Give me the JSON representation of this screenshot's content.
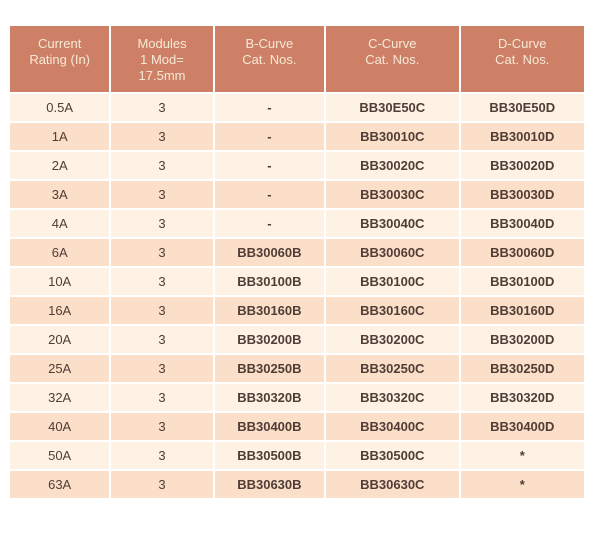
{
  "page": {
    "background": "#ffffff"
  },
  "colors": {
    "header_bg": "#cd8065",
    "header_text": "#f7e9d8",
    "row_light": "#fdf2e3",
    "row_dark": "#fbdfc8",
    "cell_text": "#503d36"
  },
  "table": {
    "columns": [
      {
        "id": "rating",
        "label_lines": [
          "Current",
          "Rating (In)"
        ]
      },
      {
        "id": "modules",
        "label_lines": [
          "Modules",
          "1 Mod=",
          "17.5mm"
        ]
      },
      {
        "id": "b_curve",
        "label_lines": [
          "B-Curve",
          "Cat. Nos."
        ]
      },
      {
        "id": "c_curve",
        "label_lines": [
          "C-Curve",
          "Cat. Nos."
        ]
      },
      {
        "id": "d_curve",
        "label_lines": [
          "D-Curve",
          "Cat. Nos."
        ]
      }
    ],
    "rows": [
      {
        "rating": "0.5A",
        "modules": "3",
        "b_curve": "-",
        "c_curve": "BB30E50C",
        "d_curve": "BB30E50D"
      },
      {
        "rating": "1A",
        "modules": "3",
        "b_curve": "-",
        "c_curve": "BB30010C",
        "d_curve": "BB30010D"
      },
      {
        "rating": "2A",
        "modules": "3",
        "b_curve": "-",
        "c_curve": "BB30020C",
        "d_curve": "BB30020D"
      },
      {
        "rating": "3A",
        "modules": "3",
        "b_curve": "-",
        "c_curve": "BB30030C",
        "d_curve": "BB30030D"
      },
      {
        "rating": "4A",
        "modules": "3",
        "b_curve": "-",
        "c_curve": "BB30040C",
        "d_curve": "BB30040D"
      },
      {
        "rating": "6A",
        "modules": "3",
        "b_curve": "BB30060B",
        "c_curve": "BB30060C",
        "d_curve": "BB30060D"
      },
      {
        "rating": "10A",
        "modules": "3",
        "b_curve": "BB30100B",
        "c_curve": "BB30100C",
        "d_curve": "BB30100D"
      },
      {
        "rating": "16A",
        "modules": "3",
        "b_curve": "BB30160B",
        "c_curve": "BB30160C",
        "d_curve": "BB30160D"
      },
      {
        "rating": "20A",
        "modules": "3",
        "b_curve": "BB30200B",
        "c_curve": "BB30200C",
        "d_curve": "BB30200D"
      },
      {
        "rating": "25A",
        "modules": "3",
        "b_curve": "BB30250B",
        "c_curve": "BB30250C",
        "d_curve": "BB30250D"
      },
      {
        "rating": "32A",
        "modules": "3",
        "b_curve": "BB30320B",
        "c_curve": "BB30320C",
        "d_curve": "BB30320D"
      },
      {
        "rating": "40A",
        "modules": "3",
        "b_curve": "BB30400B",
        "c_curve": "BB30400C",
        "d_curve": "BB30400D"
      },
      {
        "rating": "50A",
        "modules": "3",
        "b_curve": "BB30500B",
        "c_curve": "BB30500C",
        "d_curve": "*"
      },
      {
        "rating": "63A",
        "modules": "3",
        "b_curve": "BB30630B",
        "c_curve": "BB30630C",
        "d_curve": "*"
      }
    ]
  }
}
